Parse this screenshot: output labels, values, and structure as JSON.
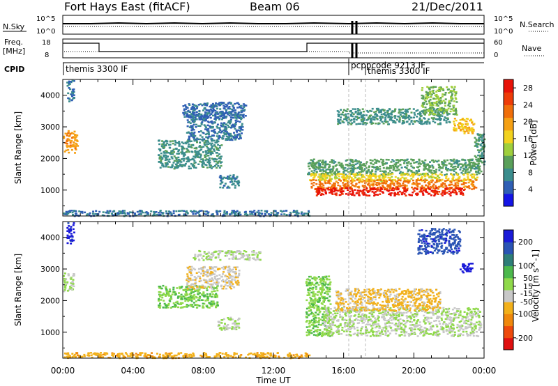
{
  "header": {
    "station": "Fort Hays East (fitACF)",
    "beam": "Beam 06",
    "date": "21/Dec/2011"
  },
  "summary_panels": {
    "nsky_label": "N.Sky",
    "nsky_ticks": [
      "10^5",
      "10^0"
    ],
    "nsearch_label": "N.Search",
    "nsearch_ticks": [
      "10^5",
      "10^0"
    ],
    "freq_label": "Freq.",
    "freq_unit": "[MHz]",
    "freq_ticks": [
      "18",
      "8"
    ],
    "nave_label": "Nave",
    "nave_ticks": [
      "60",
      "0"
    ],
    "cpid_label": "CPID",
    "cpid_segments": [
      {
        "label": "themis 3300 IF",
        "start_hour": 0
      },
      {
        "label": "pcppcode 9213 IF",
        "start_hour": 16.4
      },
      {
        "label": "themis 3300 IF",
        "start_hour": 17.2
      }
    ]
  },
  "chart_data": [
    {
      "type": "heatmap",
      "panel": "power",
      "xlabel": "Time UT",
      "ylabel": "Slant Range [km]",
      "x_range_hours": [
        0,
        24
      ],
      "x_ticks": [
        "00:00",
        "04:00",
        "08:00",
        "12:00",
        "16:00",
        "20:00",
        "00:00"
      ],
      "ylim": [
        180,
        4500
      ],
      "y_ticks": [
        1000,
        2000,
        3000,
        4000
      ],
      "colorbar": {
        "label": "Power [dB]",
        "ticks": [
          4,
          8,
          12,
          16,
          20,
          24,
          28
        ],
        "range": [
          0,
          30
        ],
        "colors": [
          "#1414e6",
          "#2f5fb4",
          "#3b8d8d",
          "#5aa05a",
          "#9fcf3c",
          "#f2d21e",
          "#f5a014",
          "#f06e0a",
          "#ee3c08",
          "#e81208"
        ]
      },
      "regions": [
        {
          "t0": 0.0,
          "t1": 0.8,
          "r0": 2200,
          "r1": 2900,
          "value": 20
        },
        {
          "t0": 0.2,
          "t1": 0.6,
          "r0": 3800,
          "r1": 4500,
          "value": 6
        },
        {
          "t0": 5.4,
          "t1": 9.0,
          "r0": 1700,
          "r1": 2600,
          "value": 8
        },
        {
          "t0": 7.0,
          "t1": 10.2,
          "r0": 2600,
          "r1": 3500,
          "value": 6
        },
        {
          "t0": 6.8,
          "t1": 10.4,
          "r0": 3300,
          "r1": 3800,
          "value": 5
        },
        {
          "t0": 8.8,
          "t1": 10.0,
          "r0": 1100,
          "r1": 1500,
          "value": 7
        },
        {
          "t0": 0.0,
          "t1": 14.0,
          "r0": 200,
          "r1": 380,
          "value": 6
        },
        {
          "t0": 13.9,
          "t1": 23.8,
          "r0": 1500,
          "r1": 2000,
          "value": 10
        },
        {
          "t0": 14.0,
          "t1": 23.6,
          "r0": 1300,
          "r1": 1550,
          "value": 16
        },
        {
          "t0": 14.1,
          "t1": 23.5,
          "r0": 1050,
          "r1": 1350,
          "value": 22
        },
        {
          "t0": 14.3,
          "t1": 22.8,
          "r0": 850,
          "r1": 1100,
          "value": 28
        },
        {
          "t0": 15.6,
          "t1": 22.0,
          "r0": 3100,
          "r1": 3600,
          "value": 8
        },
        {
          "t0": 20.4,
          "t1": 22.4,
          "r0": 3400,
          "r1": 4300,
          "value": 12
        },
        {
          "t0": 22.2,
          "t1": 23.4,
          "r0": 2800,
          "r1": 3300,
          "value": 18
        },
        {
          "t0": 23.4,
          "t1": 24.0,
          "r0": 1800,
          "r1": 2800,
          "value": 9
        }
      ]
    },
    {
      "type": "heatmap",
      "panel": "velocity",
      "xlabel": "Time UT",
      "ylabel": "Slant Range [km]",
      "x_range_hours": [
        0,
        24
      ],
      "x_ticks": [
        "00:00",
        "04:00",
        "08:00",
        "12:00",
        "16:00",
        "20:00",
        "00:00"
      ],
      "ylim": [
        180,
        4500
      ],
      "y_ticks": [
        1000,
        2000,
        3000,
        4000
      ],
      "colorbar": {
        "label": "Velocity [m s^-1]",
        "ticks": [
          200,
          100,
          50,
          15,
          -15,
          -50,
          -100,
          -200
        ],
        "range": [
          -250,
          250
        ],
        "colors": [
          "#e01010",
          "#ee4a0c",
          "#f0880c",
          "#f2b01a",
          "#c8c8c8",
          "#8fd94a",
          "#4cb84c",
          "#2e7e78",
          "#2a54b4",
          "#1a1ad8"
        ]
      },
      "regions": [
        {
          "t0": 0.0,
          "t1": 0.6,
          "r0": 2300,
          "r1": 2900,
          "value": 0
        },
        {
          "t0": 0.2,
          "t1": 0.6,
          "r0": 3800,
          "r1": 4500,
          "value": 220
        },
        {
          "t0": 5.4,
          "t1": 8.8,
          "r0": 1800,
          "r1": 2500,
          "value": 45
        },
        {
          "t0": 7.0,
          "t1": 10.0,
          "r0": 2400,
          "r1": 3100,
          "value": -40
        },
        {
          "t0": 7.4,
          "t1": 11.2,
          "r0": 3300,
          "r1": 3600,
          "value": 0
        },
        {
          "t0": 8.8,
          "t1": 10.0,
          "r0": 1100,
          "r1": 1500,
          "value": 0
        },
        {
          "t0": 0.0,
          "t1": 14.0,
          "r0": 200,
          "r1": 380,
          "value": -80
        },
        {
          "t0": 13.8,
          "t1": 15.2,
          "r0": 900,
          "r1": 2800,
          "value": 40
        },
        {
          "t0": 14.8,
          "t1": 23.8,
          "r0": 900,
          "r1": 1800,
          "value": 0
        },
        {
          "t0": 15.5,
          "t1": 21.5,
          "r0": 1700,
          "r1": 2400,
          "value": -60
        },
        {
          "t0": 20.2,
          "t1": 22.6,
          "r0": 3500,
          "r1": 4300,
          "value": 180
        },
        {
          "t0": 22.6,
          "t1": 23.3,
          "r0": 2900,
          "r1": 3200,
          "value": 250
        }
      ]
    }
  ]
}
